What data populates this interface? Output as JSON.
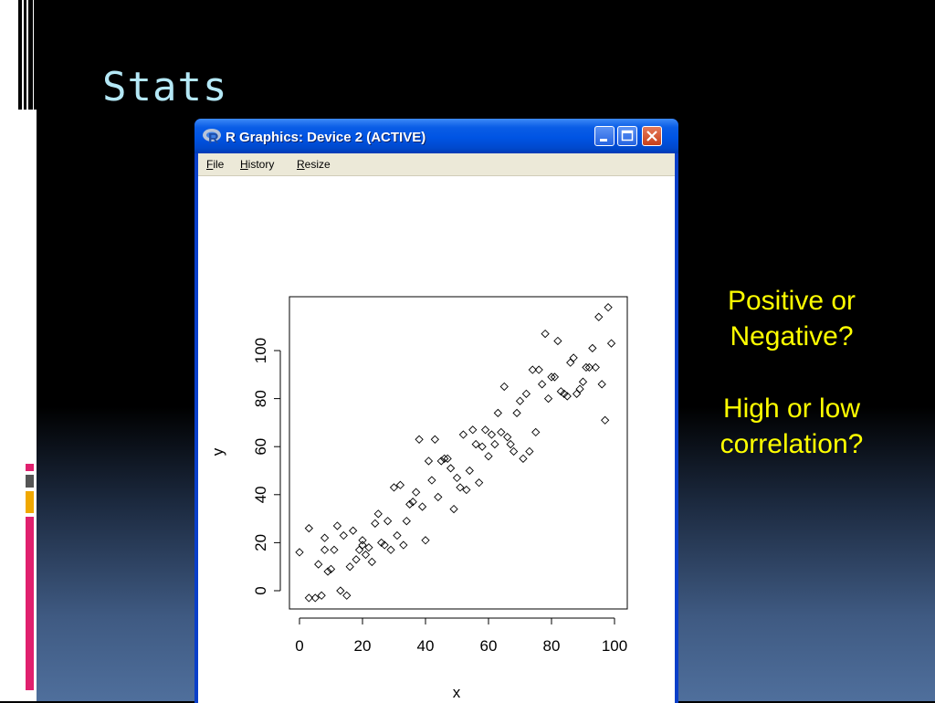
{
  "slide": {
    "title": "Stats",
    "questions": [
      "Positive or Negative?",
      "High or low correlation?"
    ],
    "question_color": "#ffff00",
    "title_color": "#b4e8f6"
  },
  "window": {
    "title": "R Graphics: Device 2 (ACTIVE)",
    "app_icon": "r-logo-icon",
    "controls": [
      "minimize-icon",
      "maximize-icon",
      "close-icon"
    ],
    "menu": [
      "File",
      "History",
      "Resize"
    ]
  },
  "chart_data": {
    "type": "scatter",
    "title": "",
    "xlabel": "x",
    "ylabel": "y",
    "xlim": [
      0,
      100
    ],
    "ylim": [
      -5,
      120
    ],
    "xticks": [
      0,
      20,
      40,
      60,
      80,
      100
    ],
    "yticks": [
      0,
      20,
      40,
      60,
      80,
      100
    ],
    "grid": false,
    "marker": "open-diamond",
    "points": [
      [
        0,
        16
      ],
      [
        3,
        -3
      ],
      [
        3,
        26
      ],
      [
        5,
        -3
      ],
      [
        6,
        11
      ],
      [
        7,
        -2
      ],
      [
        8,
        17
      ],
      [
        8,
        22
      ],
      [
        9,
        8
      ],
      [
        10,
        9
      ],
      [
        11,
        17
      ],
      [
        12,
        27
      ],
      [
        13,
        0
      ],
      [
        14,
        23
      ],
      [
        15,
        -2
      ],
      [
        16,
        10
      ],
      [
        17,
        25
      ],
      [
        18,
        13
      ],
      [
        19,
        17
      ],
      [
        20,
        21
      ],
      [
        20,
        19
      ],
      [
        21,
        15
      ],
      [
        22,
        18
      ],
      [
        23,
        12
      ],
      [
        24,
        28
      ],
      [
        25,
        32
      ],
      [
        26,
        20
      ],
      [
        27,
        19
      ],
      [
        28,
        29
      ],
      [
        29,
        17
      ],
      [
        30,
        43
      ],
      [
        31,
        23
      ],
      [
        32,
        44
      ],
      [
        33,
        19
      ],
      [
        34,
        29
      ],
      [
        35,
        36
      ],
      [
        36,
        37
      ],
      [
        37,
        41
      ],
      [
        38,
        63
      ],
      [
        39,
        35
      ],
      [
        40,
        21
      ],
      [
        41,
        54
      ],
      [
        42,
        46
      ],
      [
        43,
        63
      ],
      [
        44,
        39
      ],
      [
        45,
        54
      ],
      [
        46,
        55
      ],
      [
        47,
        55
      ],
      [
        48,
        51
      ],
      [
        49,
        34
      ],
      [
        50,
        47
      ],
      [
        51,
        43
      ],
      [
        52,
        65
      ],
      [
        53,
        42
      ],
      [
        54,
        50
      ],
      [
        55,
        67
      ],
      [
        56,
        61
      ],
      [
        57,
        45
      ],
      [
        58,
        60
      ],
      [
        59,
        67
      ],
      [
        60,
        56
      ],
      [
        61,
        65
      ],
      [
        62,
        61
      ],
      [
        63,
        74
      ],
      [
        64,
        66
      ],
      [
        65,
        85
      ],
      [
        66,
        64
      ],
      [
        67,
        61
      ],
      [
        68,
        58
      ],
      [
        69,
        74
      ],
      [
        70,
        79
      ],
      [
        71,
        55
      ],
      [
        72,
        82
      ],
      [
        73,
        58
      ],
      [
        74,
        92
      ],
      [
        75,
        66
      ],
      [
        76,
        92
      ],
      [
        77,
        86
      ],
      [
        78,
        107
      ],
      [
        79,
        80
      ],
      [
        80,
        89
      ],
      [
        81,
        89
      ],
      [
        82,
        104
      ],
      [
        83,
        83
      ],
      [
        84,
        82
      ],
      [
        85,
        81
      ],
      [
        86,
        95
      ],
      [
        87,
        97
      ],
      [
        88,
        82
      ],
      [
        89,
        84
      ],
      [
        90,
        87
      ],
      [
        91,
        93
      ],
      [
        92,
        93
      ],
      [
        93,
        101
      ],
      [
        94,
        93
      ],
      [
        95,
        114
      ],
      [
        96,
        86
      ],
      [
        97,
        71
      ],
      [
        98,
        118
      ],
      [
        99,
        103
      ]
    ]
  }
}
